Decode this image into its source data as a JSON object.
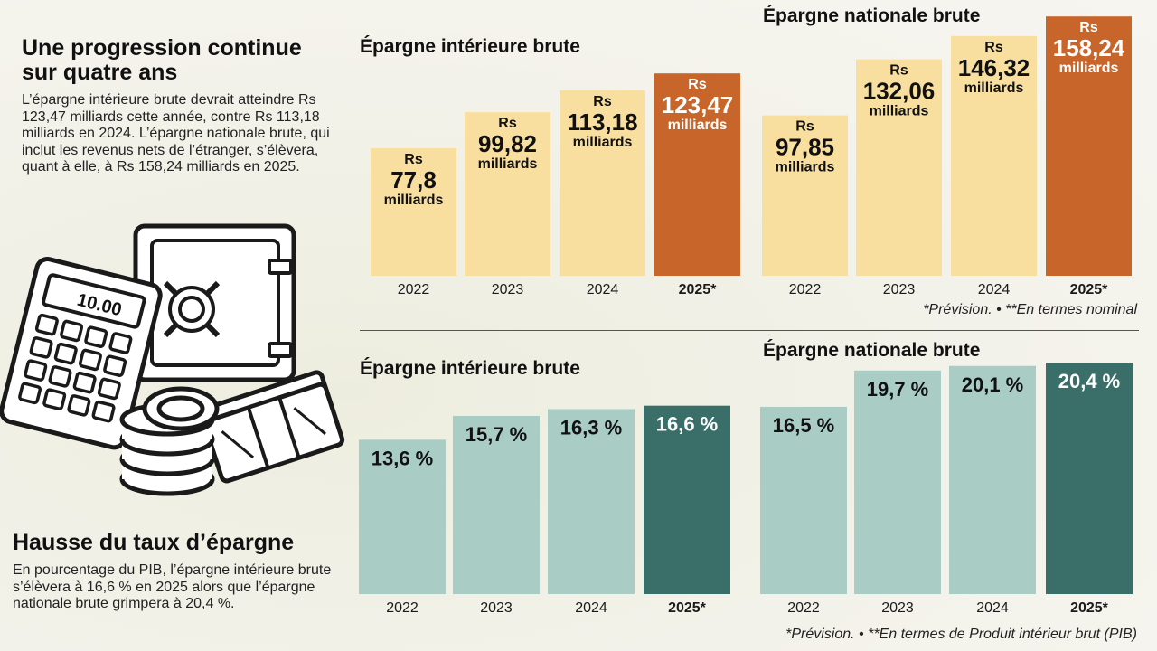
{
  "intro": {
    "title": "Une progression continue sur quatre ans",
    "text": "L’épargne intérieure brute devrait atteindre Rs 123,47 milliards cette année, contre Rs 113,18 milliards en 2024. L’épargne nationale brute, qui inclut les revenus nets de l’étranger, s’élèvera, quant à elle, à Rs 158,24 milliards en 2025."
  },
  "outro": {
    "title": "Hausse du taux d’épargne",
    "text": "En pourcentage du PIB, l’épargne intérieure brute s’élèvera à 16,6 % en 2025 alors que l’épargne nationale brute grimpera à 20,4 %."
  },
  "illustration": {
    "calculator_display": "10.00"
  },
  "notes": {
    "top": "*Prévision. • **En termes nominal",
    "bottom": "*Prévision. • **En termes de Produit intérieur brut (PIB)"
  },
  "colors": {
    "light_gold": "#f8dfa0",
    "orange": "#c8652a",
    "light_teal": "#a9ccc5",
    "dark_teal": "#3a6f69"
  },
  "chart_data": [
    {
      "type": "bar",
      "title": "Épargne intérieure brute",
      "categories": [
        "2022",
        "2023",
        "2024",
        "2025*"
      ],
      "values": [
        77.8,
        99.82,
        113.18,
        123.47
      ],
      "labels": [
        "77,8",
        "99,82",
        "113,18",
        "123,47"
      ],
      "prefix": "Rs",
      "unit": "milliards",
      "highlight_index": 3,
      "ylim": [
        0,
        160
      ]
    },
    {
      "type": "bar",
      "title": "Épargne nationale brute",
      "categories": [
        "2022",
        "2023",
        "2024",
        "2025*"
      ],
      "values": [
        97.85,
        132.06,
        146.32,
        158.24
      ],
      "labels": [
        "97,85",
        "132,06",
        "146,32",
        "158,24"
      ],
      "prefix": "Rs",
      "unit": "milliards",
      "highlight_index": 3,
      "ylim": [
        0,
        160
      ]
    },
    {
      "type": "bar",
      "title": "Épargne intérieure brute",
      "categories": [
        "2022",
        "2023",
        "2024",
        "2025*"
      ],
      "values": [
        13.6,
        15.7,
        16.3,
        16.6
      ],
      "labels": [
        "13,6 %",
        "15,7 %",
        "16,3 %",
        "16,6 %"
      ],
      "highlight_index": 3,
      "ylim": [
        0,
        20.4
      ]
    },
    {
      "type": "bar",
      "title": "Épargne nationale brute",
      "categories": [
        "2022",
        "2023",
        "2024",
        "2025*"
      ],
      "values": [
        16.5,
        19.7,
        20.1,
        20.4
      ],
      "labels": [
        "16,5 %",
        "19,7 %",
        "20,1 %",
        "20,4 %"
      ],
      "highlight_index": 3,
      "ylim": [
        0,
        20.4
      ]
    }
  ]
}
